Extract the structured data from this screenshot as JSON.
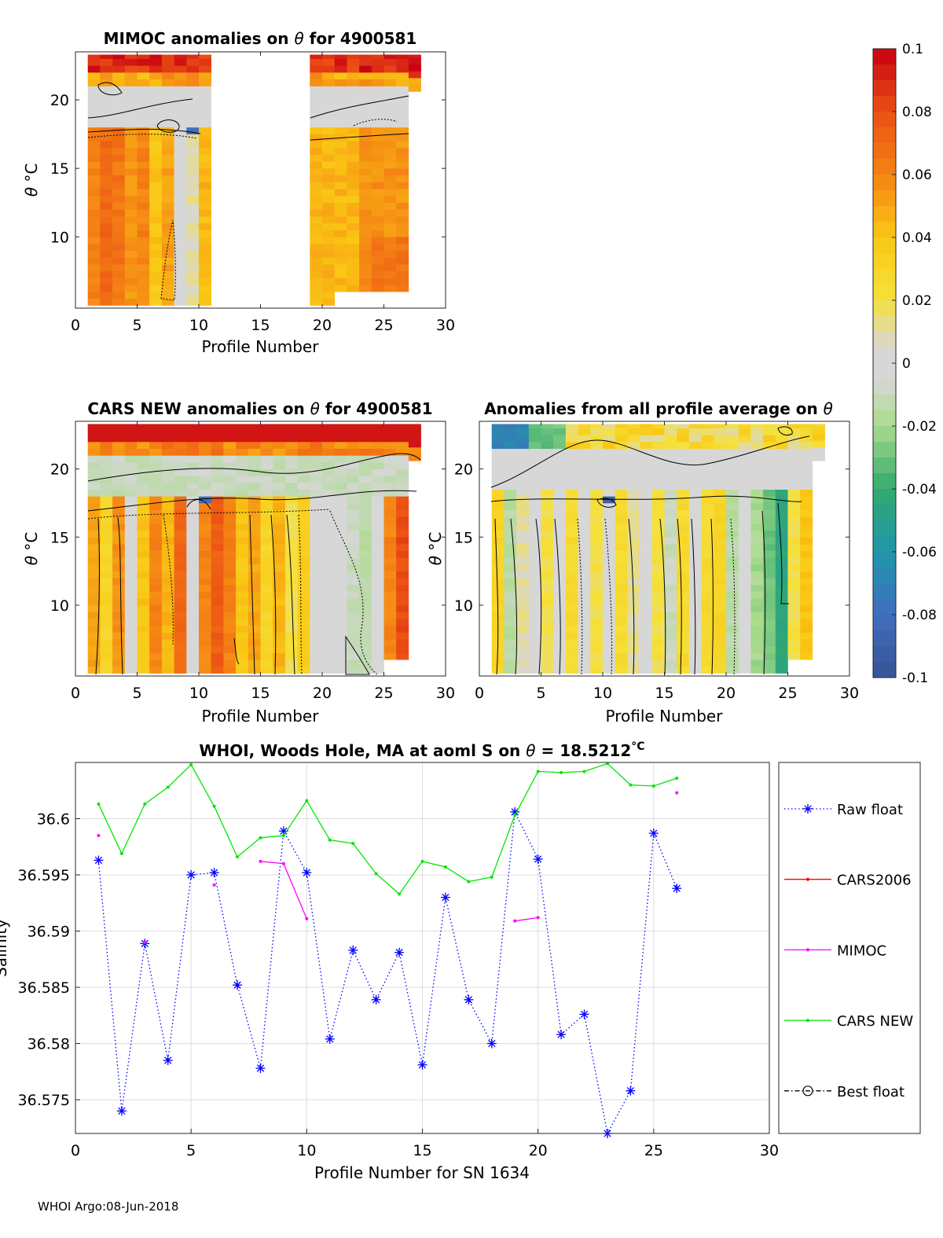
{
  "footer": "WHOI Argo:08-Jun-2018",
  "colorbar": {
    "range": [
      -0.1,
      0.1
    ],
    "tick_labels": [
      "0.1",
      "0.08",
      "0.06",
      "0.04",
      "0.02",
      "0",
      "-0.02",
      "-0.04",
      "-0.06",
      "-0.08",
      "-0.1"
    ],
    "tick_values": [
      0.1,
      0.08,
      0.06,
      0.04,
      0.02,
      0,
      -0.02,
      -0.04,
      -0.06,
      -0.08,
      -0.1
    ]
  },
  "chart_data": [
    {
      "type": "heatmap",
      "id": "mimoc",
      "title_prefix": "MIMOC anomalies on ",
      "title_symbol": "θ",
      "title_suffix": "  for 4900581",
      "xlabel": "Profile Number",
      "ylabel_symbol": "θ",
      "ylabel_unit": "°C",
      "xlim": [
        0,
        30
      ],
      "ylim": [
        4.8,
        23.5
      ],
      "xticks": [
        0,
        5,
        10,
        15,
        20,
        25,
        30
      ],
      "yticks": [
        10,
        15,
        20
      ],
      "segments": [
        {
          "profiles": [
            1,
            10
          ],
          "top": 23.3,
          "bottom": 5.0
        },
        {
          "profiles": [
            19,
            20
          ],
          "top": 23.3,
          "bottom": 5.0
        },
        {
          "profiles": [
            21,
            26
          ],
          "top": 23.3,
          "bottom": 6.0
        },
        {
          "profiles": [
            27,
            27
          ],
          "top": 23.3,
          "bottom": 20.6
        }
      ]
    },
    {
      "type": "heatmap",
      "id": "cars",
      "title_prefix": "CARS NEW anomalies on ",
      "title_symbol": "θ",
      "title_suffix": " for 4900581",
      "xlabel": "Profile Number",
      "ylabel_symbol": "θ",
      "ylabel_unit": "°C",
      "xlim": [
        0,
        30
      ],
      "ylim": [
        4.8,
        23.5
      ],
      "xticks": [
        0,
        5,
        10,
        15,
        20,
        25,
        30
      ],
      "yticks": [
        10,
        15,
        20
      ],
      "segments": [
        {
          "profiles": [
            1,
            24
          ],
          "top": 23.3,
          "bottom": 5.0
        },
        {
          "profiles": [
            25,
            26
          ],
          "top": 23.3,
          "bottom": 6.0
        },
        {
          "profiles": [
            27,
            27
          ],
          "top": 23.3,
          "bottom": 20.6
        }
      ]
    },
    {
      "type": "heatmap",
      "id": "average",
      "title_prefix": "Anomalies from all profile average on ",
      "title_symbol": "θ",
      "title_suffix": "",
      "xlabel": "Profile Number",
      "ylabel_symbol": "θ",
      "ylabel_unit": "°C",
      "xlim": [
        0,
        30
      ],
      "ylim": [
        4.8,
        23.5
      ],
      "xticks": [
        0,
        5,
        10,
        15,
        20,
        25,
        30
      ],
      "yticks": [
        10,
        15,
        20
      ],
      "segments": [
        {
          "profiles": [
            1,
            24
          ],
          "top": 23.3,
          "bottom": 5.0
        },
        {
          "profiles": [
            25,
            26
          ],
          "top": 23.3,
          "bottom": 6.0
        },
        {
          "profiles": [
            27,
            27
          ],
          "top": 23.3,
          "bottom": 20.6
        }
      ]
    },
    {
      "type": "line",
      "id": "salinity",
      "title_prefix": "WHOI, Woods Hole, MA at aoml S on ",
      "title_symbol": "θ",
      "title_suffix": " = 18.5212",
      "title_unit": "°C",
      "xlabel": "Profile Number for SN 1634",
      "ylabel": "Salinity",
      "xlim": [
        0,
        30
      ],
      "ylim": [
        36.572,
        36.605
      ],
      "xticks": [
        0,
        5,
        10,
        15,
        20,
        25,
        30
      ],
      "yticks": [
        36.575,
        36.58,
        36.585,
        36.59,
        36.595,
        36.6
      ],
      "ytick_labels": [
        "36.575",
        "36.58",
        "36.585",
        "36.59",
        "36.595",
        "36.6"
      ],
      "series": [
        {
          "name": "Raw float",
          "color": "#0000ff",
          "style": "dotted",
          "marker": "asterisk",
          "x": [
            1,
            2,
            3,
            4,
            5,
            6,
            7,
            8,
            9,
            10,
            11,
            12,
            13,
            14,
            15,
            16,
            17,
            18,
            19,
            20,
            21,
            22,
            23,
            24,
            25,
            26
          ],
          "y": [
            36.5963,
            36.574,
            36.5889,
            36.5785,
            36.595,
            36.5952,
            36.5852,
            36.5778,
            36.5989,
            36.5952,
            36.5804,
            36.5883,
            36.5839,
            36.5881,
            36.5781,
            36.593,
            36.5839,
            36.58,
            36.6006,
            36.5964,
            36.5808,
            36.5826,
            36.572,
            36.5758,
            36.5987,
            36.5938
          ]
        },
        {
          "name": "CARS2006",
          "color": "#ff0000",
          "style": "solid",
          "marker": "dot",
          "x": [],
          "y": []
        },
        {
          "name": "MIMOC",
          "color": "#ff00ff",
          "style": "solid",
          "marker": "dot",
          "x": [
            1,
            3,
            6,
            8,
            9,
            10,
            19,
            20,
            26
          ],
          "y": [
            36.5985,
            36.589,
            36.5941,
            36.5962,
            36.596,
            36.5911,
            36.5909,
            36.5912,
            36.6023
          ],
          "segments": [
            [
              1
            ],
            [
              3
            ],
            [
              6
            ],
            [
              8,
              9,
              10
            ],
            [
              19,
              20
            ],
            [
              26
            ]
          ]
        },
        {
          "name": "CARS NEW",
          "color": "#00e600",
          "style": "solid",
          "marker": "dot",
          "x": [
            1,
            2,
            3,
            4,
            5,
            6,
            7,
            8,
            9,
            10,
            11,
            12,
            13,
            14,
            15,
            16,
            17,
            18,
            19,
            20,
            21,
            22,
            23,
            24,
            25,
            26
          ],
          "y": [
            36.6013,
            36.5969,
            36.6013,
            36.6028,
            36.6048,
            36.6011,
            36.5966,
            36.5983,
            36.5985,
            36.6016,
            36.5981,
            36.5978,
            36.5951,
            36.5933,
            36.5962,
            36.5957,
            36.5944,
            36.5948,
            36.6003,
            36.6042,
            36.6041,
            36.6042,
            36.6049,
            36.603,
            36.6029,
            36.6036
          ]
        },
        {
          "name": "Best float",
          "color": "#000000",
          "style": "dashdot",
          "marker": "circle",
          "x": [],
          "y": []
        }
      ],
      "legend_position": "right-outside"
    }
  ]
}
